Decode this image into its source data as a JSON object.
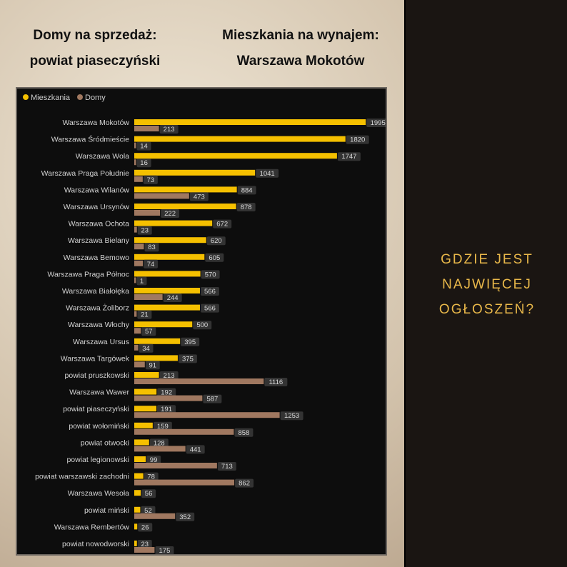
{
  "headings": {
    "left": [
      "Domy na sprzedaż:",
      "powiat piaseczyński"
    ],
    "right": [
      "Mieszkania na wynajem:",
      "Warszawa Mokotów"
    ]
  },
  "question": [
    "GDZIE JEST",
    "NAJWIĘCEJ",
    "OGŁOSZEŃ?"
  ],
  "colors": {
    "mieszkania": "#f5c000",
    "domy": "#a07860",
    "label_bg": "#333333"
  },
  "chart_data": {
    "type": "bar",
    "orientation": "horizontal",
    "legend_position": "top-left",
    "grid": false,
    "xlim": [
      0,
      2000
    ],
    "categories": [
      "Warszawa Mokotów",
      "Warszawa Śródmieście",
      "Warszawa Wola",
      "Warszawa Praga Południe",
      "Warszawa Wilanów",
      "Warszawa Ursynów",
      "Warszawa Ochota",
      "Warszawa Bielany",
      "Warszawa Bemowo",
      "Warszawa Praga Północ",
      "Warszawa Białołęka",
      "Warszawa Żoliborz",
      "Warszawa Włochy",
      "Warszawa Ursus",
      "Warszawa Targówek",
      "powiat pruszkowski",
      "Warszawa Wawer",
      "powiat piaseczyński",
      "powiat wołomiński",
      "powiat otwocki",
      "powiat legionowski",
      "powiat warszawski zachodni",
      "Warszawa Wesoła",
      "powiat miński",
      "Warszawa Rembertów",
      "powiat nowodworski"
    ],
    "series": [
      {
        "name": "Mieszkania",
        "values": [
          1995,
          1820,
          1747,
          1041,
          884,
          878,
          672,
          620,
          605,
          570,
          566,
          566,
          500,
          395,
          375,
          213,
          192,
          191,
          159,
          128,
          99,
          78,
          56,
          52,
          26,
          23
        ]
      },
      {
        "name": "Domy",
        "values": [
          213,
          14,
          16,
          73,
          473,
          222,
          23,
          83,
          74,
          1,
          244,
          21,
          57,
          34,
          91,
          1116,
          587,
          1253,
          858,
          441,
          713,
          862,
          null,
          352,
          null,
          175
        ]
      }
    ]
  }
}
